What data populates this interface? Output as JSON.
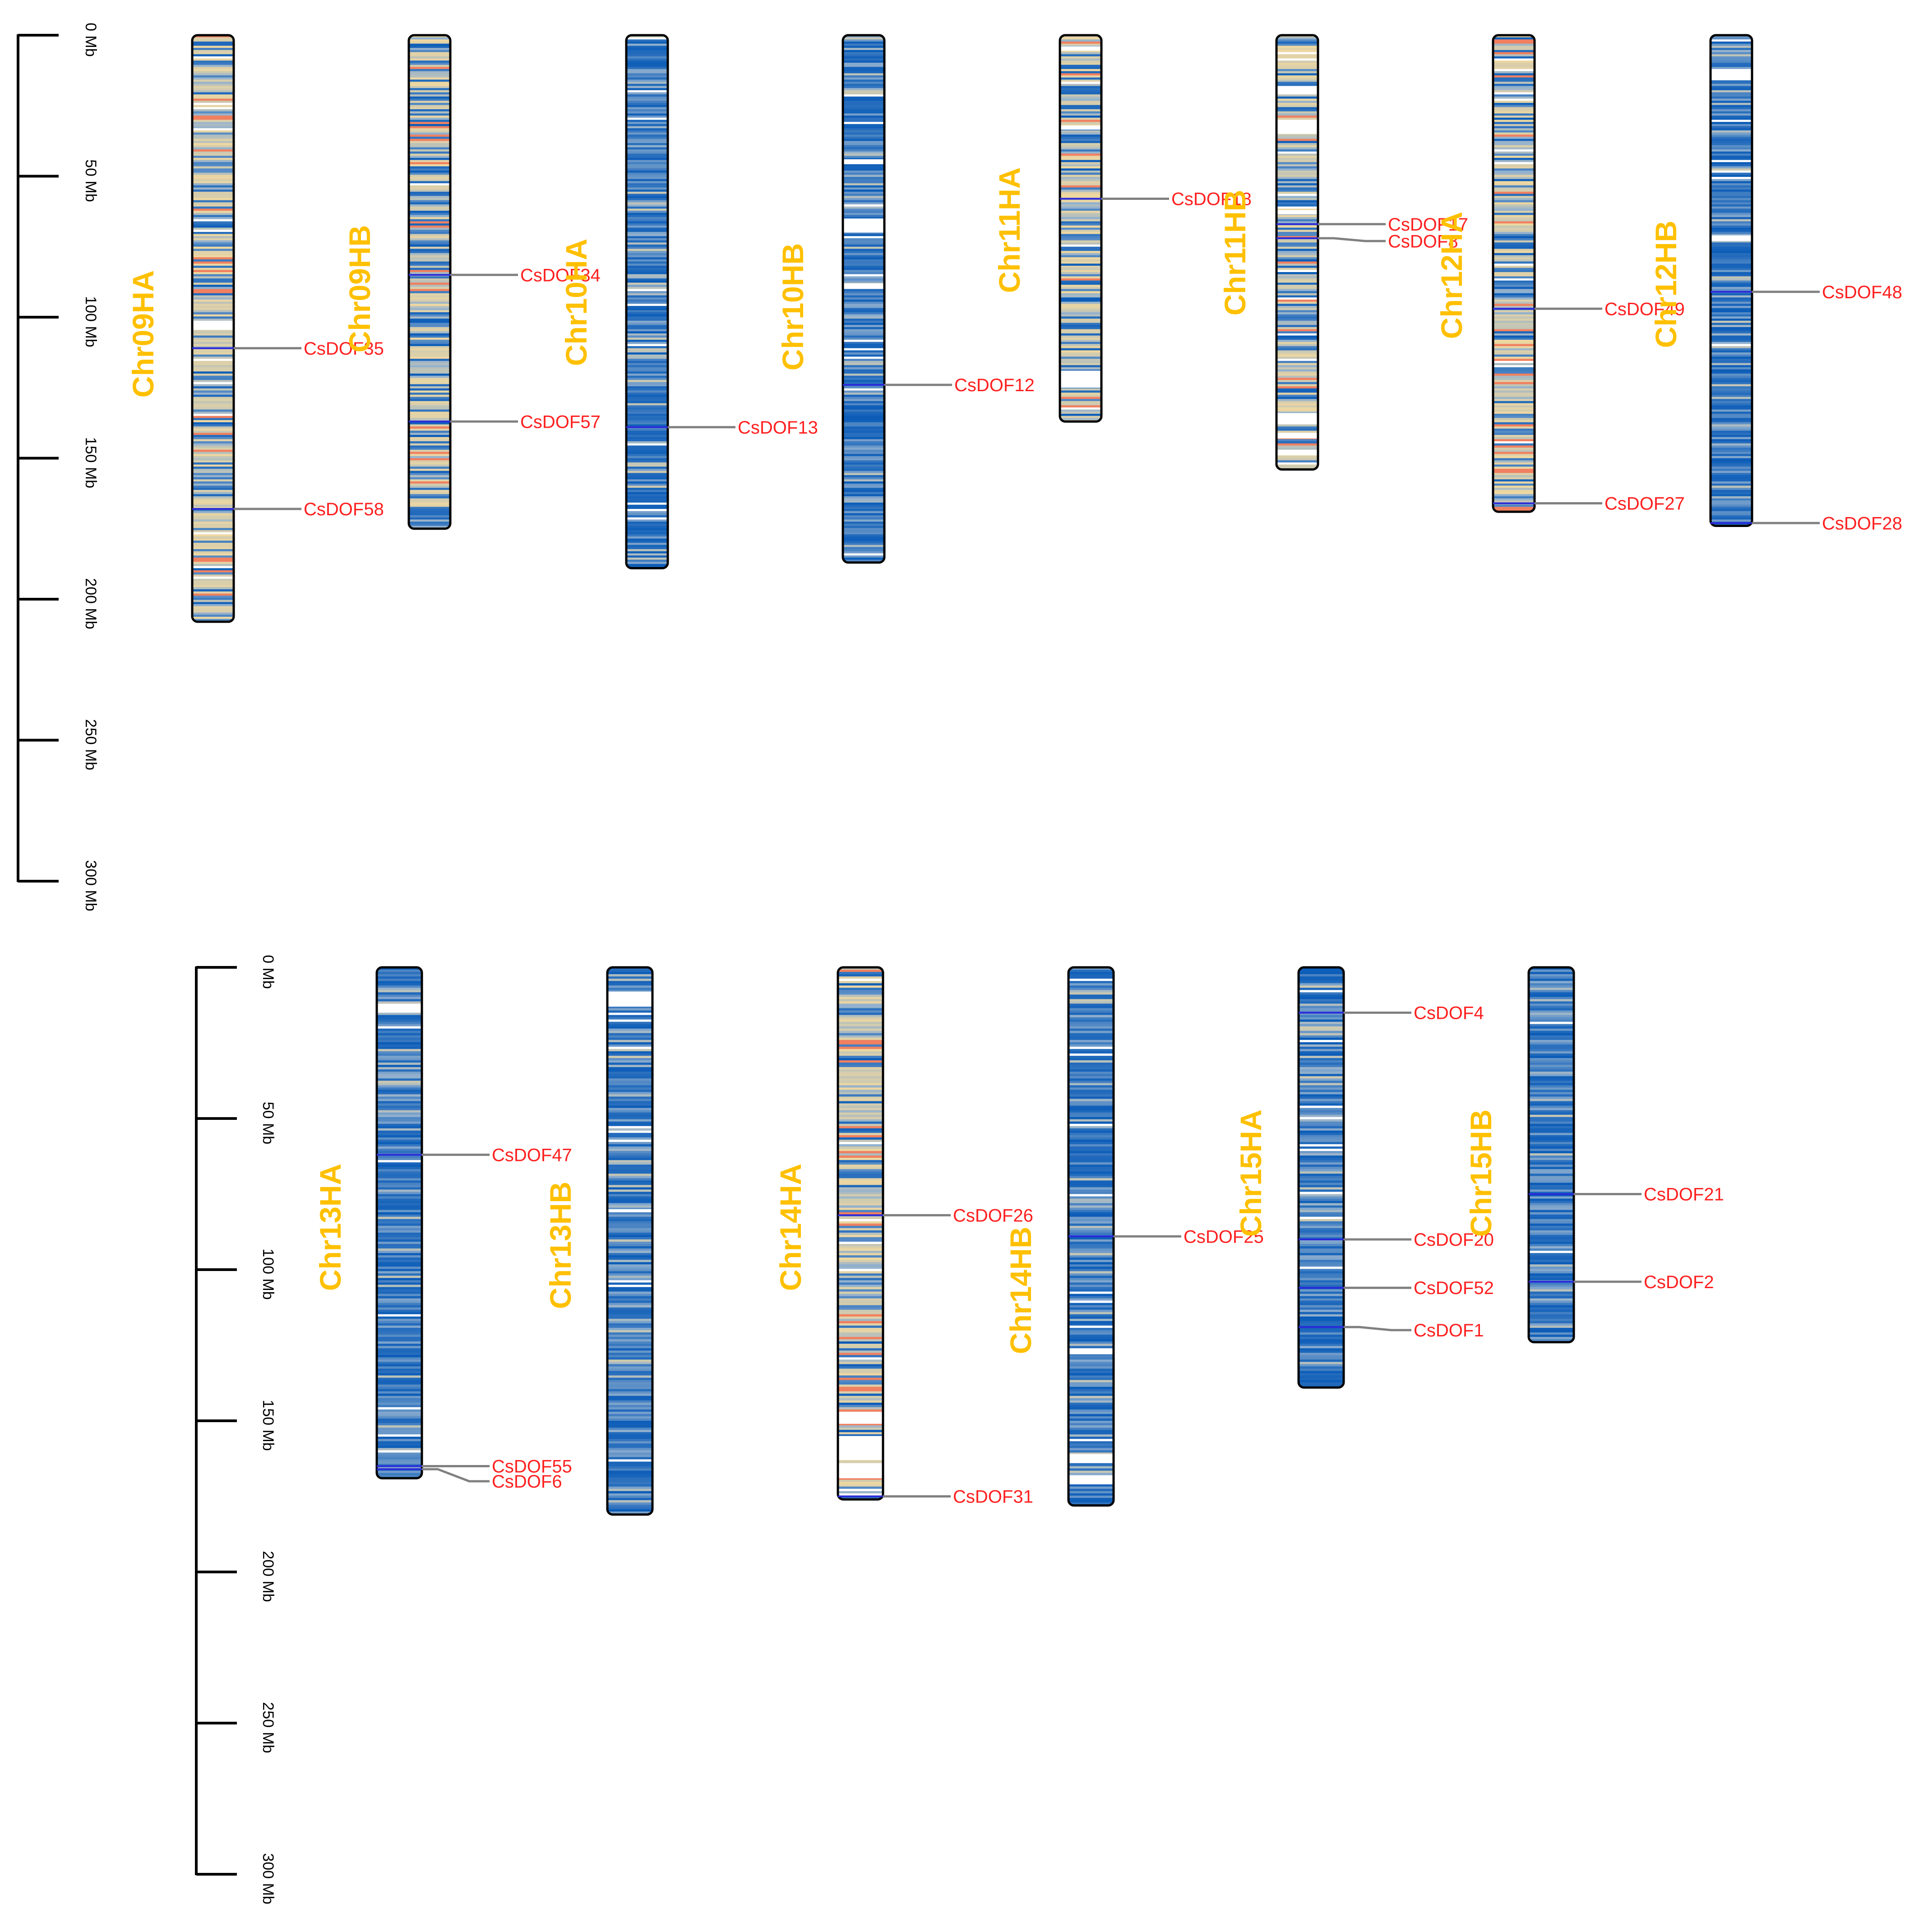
{
  "figure": {
    "title": "",
    "scale_unit": "Mb",
    "scale_max": 300,
    "scale_ticks": [
      0,
      50,
      100,
      150,
      200,
      250,
      300
    ],
    "scale_tick_labels": [
      "0 Mb",
      "50 Mb",
      "100 Mb",
      "150 Mb",
      "200 Mb",
      "250 Mb",
      "300 Mb"
    ]
  },
  "colors": {
    "chrom_label": "#FFC000",
    "gene_label": "#FF2020",
    "gene_line": "#808080",
    "marker": "#2A2AD8",
    "outline": "#000000",
    "density_low": "#0B5CB8",
    "density_mid": "#8FAFCF",
    "density_high": "#F0D8A0",
    "density_peak": "#F08060",
    "gap": "#FFFFFF"
  },
  "panels": [
    {
      "name": "panel-top",
      "chromosomes": [
        {
          "id": "Chr09HA",
          "length": 208,
          "palette": "mixed",
          "seed": 11,
          "blank_bands": [
            [
              102,
              104.5
            ]
          ],
          "genes": [
            {
              "name": "CsDOF35",
              "position": 111,
              "label_position": 111
            },
            {
              "name": "CsDOF58",
              "position": 168,
              "label_position": 168
            }
          ]
        },
        {
          "id": "Chr09HB",
          "length": 175,
          "palette": "mixed",
          "seed": 23,
          "blank_bands": [],
          "genes": [
            {
              "name": "CsDOF34",
              "position": 85,
              "label_position": 85
            },
            {
              "name": "CsDOF57",
              "position": 137,
              "label_position": 137
            }
          ]
        },
        {
          "id": "Chr10HA",
          "length": 189,
          "palette": "blue",
          "seed": 37,
          "blank_bands": [],
          "genes": [
            {
              "name": "CsDOF13",
              "position": 139,
              "label_position": 139
            }
          ]
        },
        {
          "id": "Chr10HB",
          "length": 187,
          "palette": "blue",
          "seed": 41,
          "blank_bands": [
            [
              65,
              70
            ],
            [
              44,
              45.5
            ],
            [
              88,
              90
            ]
          ],
          "genes": [
            {
              "name": "CsDOF12",
              "position": 124,
              "label_position": 124
            }
          ]
        },
        {
          "id": "Chr11HA",
          "length": 137,
          "palette": "mixed",
          "seed": 53,
          "blank_bands": [
            [
              119,
              125
            ],
            [
              4,
              5.5
            ],
            [
              32,
              33.5
            ]
          ],
          "genes": [
            {
              "name": "CsDOF18",
              "position": 58,
              "label_position": 58
            }
          ]
        },
        {
          "id": "Chr11HB",
          "length": 154,
          "palette": "mixed",
          "seed": 67,
          "blank_bands": [
            [
              18,
              21
            ],
            [
              30,
              35
            ],
            [
              134,
              138
            ],
            [
              141,
              143
            ],
            [
              147,
              149
            ],
            [
              62,
              63.5
            ]
          ],
          "genes": [
            {
              "name": "CsDOF17",
              "position": 67,
              "label_position": 67
            },
            {
              "name": "CsDOF8",
              "position": 72,
              "label_position": 73
            }
          ]
        },
        {
          "id": "Chr12HA",
          "length": 169,
          "palette": "mixed",
          "seed": 79,
          "blank_bands": [],
          "genes": [
            {
              "name": "CsDOF49",
              "position": 97,
              "label_position": 97
            },
            {
              "name": "CsDOF27",
              "position": 166,
              "label_position": 166
            }
          ]
        },
        {
          "id": "Chr12HB",
          "length": 174,
          "palette": "blue",
          "seed": 97,
          "blank_bands": [
            [
              12,
              16
            ],
            [
              71,
              73
            ]
          ],
          "genes": [
            {
              "name": "CsDOF48",
              "position": 91,
              "label_position": 91
            },
            {
              "name": "CsDOF28",
              "position": 173,
              "label_position": 173
            }
          ]
        }
      ]
    },
    {
      "name": "panel-bottom",
      "chromosomes": [
        {
          "id": "Chr13HA",
          "length": 169,
          "palette": "blue",
          "seed": 103,
          "blank_bands": [
            [
              12,
              15
            ]
          ],
          "genes": [
            {
              "name": "CsDOF47",
              "position": 62,
              "label_position": 62
            },
            {
              "name": "CsDOF55",
              "position": 165,
              "label_position": 165
            },
            {
              "name": "CsDOF6",
              "position": 166,
              "label_position": 170
            }
          ]
        },
        {
          "id": "Chr13HB",
          "length": 181,
          "palette": "blue",
          "seed": 113,
          "blank_bands": [
            [
              8,
              13
            ],
            [
              80,
              81
            ]
          ],
          "genes": []
        },
        {
          "id": "Chr14HA",
          "length": 176,
          "palette": "mixed",
          "seed": 131,
          "blank_bands": [
            [
              147,
              151
            ],
            [
              155,
              163
            ],
            [
              164,
              169
            ]
          ],
          "genes": [
            {
              "name": "CsDOF26",
              "position": 82,
              "label_position": 82
            },
            {
              "name": "CsDOF31",
              "position": 175,
              "label_position": 175
            }
          ]
        },
        {
          "id": "Chr14HB",
          "length": 178,
          "palette": "blue",
          "seed": 149,
          "blank_bands": [
            [
              126,
              128
            ],
            [
              161,
              164
            ],
            [
              168,
              171
            ]
          ],
          "genes": [
            {
              "name": "CsDOF25",
              "position": 89,
              "label_position": 89
            }
          ]
        },
        {
          "id": "Chr15HA",
          "length": 139,
          "palette": "blue",
          "seed": 163,
          "blank_bands": [],
          "genes": [
            {
              "name": "CsDOF4",
              "position": 15,
              "label_position": 15
            },
            {
              "name": "CsDOF20",
              "position": 90,
              "label_position": 90
            },
            {
              "name": "CsDOF52",
              "position": 106,
              "label_position": 106
            },
            {
              "name": "CsDOF1",
              "position": 119,
              "label_position": 120
            }
          ]
        },
        {
          "id": "Chr15HB",
          "length": 124,
          "palette": "blue",
          "seed": 181,
          "blank_bands": [],
          "genes": [
            {
              "name": "CsDOF21",
              "position": 75,
              "label_position": 75
            },
            {
              "name": "CsDOF2",
              "position": 104,
              "label_position": 104
            }
          ]
        }
      ]
    }
  ]
}
